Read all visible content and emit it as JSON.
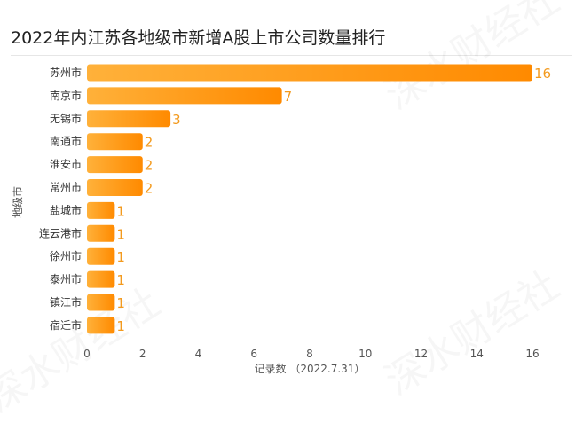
{
  "title": "2022年内江苏各地级市新增A股上市公司数量排行",
  "watermark_text": "深水财经社",
  "chart_data": {
    "type": "bar",
    "orientation": "horizontal",
    "categories": [
      "苏州市",
      "南京市",
      "无锡市",
      "南通市",
      "淮安市",
      "常州市",
      "盐城市",
      "连云港市",
      "徐州市",
      "泰州市",
      "镇江市",
      "宿迁市"
    ],
    "values": [
      16,
      7,
      3,
      2,
      2,
      2,
      1,
      1,
      1,
      1,
      1,
      1
    ],
    "xlabel": "记录数 （2022.7.31）",
    "ylabel": "地级市",
    "xlim": [
      0,
      16
    ],
    "xticks": [
      0,
      2,
      4,
      6,
      8,
      10,
      12,
      14,
      16
    ],
    "bar_color_start": "#ffb13a",
    "bar_color_end": "#ff8a00",
    "value_label_color": "#f39a1e",
    "grid": false,
    "legend": "none"
  }
}
